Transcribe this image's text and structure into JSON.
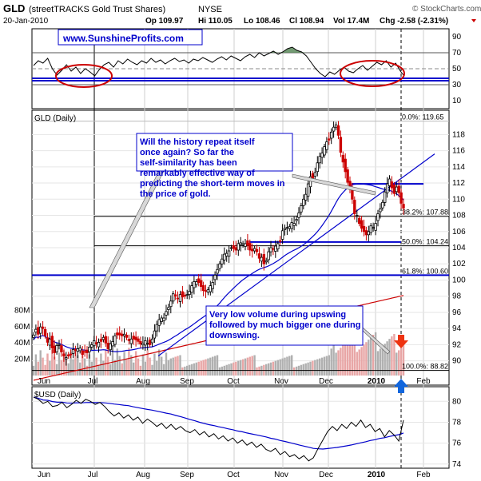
{
  "header": {
    "symbol": "GLD",
    "name": "(streetTRACKS Gold Trust Shares)",
    "exchange": "NYSE",
    "date": "20-Jan-2010",
    "open": "Op 109.97",
    "high": "Hi 110.05",
    "low": "Lo 108.46",
    "close": "Cl 108.94",
    "volume": "Vol 17.4M",
    "change": "Chg -2.58 (-2.31%)",
    "source": "© StockCharts.com"
  },
  "watermark": "www.SunshineProfits.com",
  "colors": {
    "up": "#000000",
    "down": "#cc0000",
    "ma": "#0000cc",
    "ma_long": "#cc0000",
    "fib": "#000000",
    "annotation": "#0000cc",
    "ellipse": "#cc0000",
    "overbought_fill": "#5a8a5a"
  },
  "chart_data": [
    {
      "id": "rsi",
      "type": "line",
      "title": "",
      "ylim": [
        0,
        100
      ],
      "yticks": [
        10,
        30,
        50,
        70,
        90
      ],
      "levels": [
        30,
        70
      ],
      "highlight_levels": [
        38,
        35
      ],
      "series": [
        {
          "x": [
            0,
            3,
            6,
            9,
            12,
            15,
            18,
            21,
            24,
            27,
            30,
            33,
            36,
            39,
            42,
            45,
            48,
            51,
            54,
            57,
            60,
            63,
            66,
            69,
            72,
            75,
            78,
            81,
            84,
            87,
            90,
            93,
            96,
            99,
            102,
            105,
            108,
            111,
            114,
            117,
            120,
            123,
            126,
            129,
            132,
            135,
            138,
            141,
            144,
            147,
            150,
            153,
            156,
            159,
            162,
            165,
            168,
            171,
            174,
            177,
            180,
            183,
            186,
            189,
            192,
            195,
            198,
            201,
            204,
            207,
            210,
            213,
            216,
            219,
            222,
            225,
            228,
            231,
            234,
            236
          ],
          "values": [
            54,
            60,
            57,
            63,
            50,
            42,
            48,
            55,
            47,
            52,
            44,
            50,
            46,
            41,
            49,
            55,
            58,
            52,
            60,
            56,
            62,
            58,
            55,
            60,
            57,
            63,
            58,
            61,
            56,
            60,
            63,
            59,
            61,
            57,
            62,
            60,
            64,
            61,
            58,
            62,
            65,
            61,
            66,
            63,
            60,
            65,
            68,
            64,
            70,
            66,
            69,
            72,
            68,
            71,
            75,
            77,
            73,
            71,
            66,
            58,
            50,
            44,
            40,
            46,
            43,
            48,
            52,
            47,
            45,
            50,
            54,
            48,
            53,
            58,
            55,
            60,
            52,
            57,
            47,
            42
          ]
        }
      ]
    },
    {
      "id": "price",
      "type": "candlestick",
      "title": "GLD (Daily)",
      "ylim": [
        87,
        121
      ],
      "yticks": [
        90,
        92,
        94,
        96,
        98,
        100,
        102,
        104,
        106,
        108,
        110,
        112,
        114,
        116,
        118
      ],
      "xticks": [
        "Jun",
        "Jul",
        "Aug",
        "Sep",
        "Oct",
        "Nov",
        "Dec",
        "2010",
        "Feb"
      ],
      "fib_levels": [
        {
          "label": "0.0%: 119.65",
          "value": 119.65
        },
        {
          "label": "38.2%: 107.88",
          "value": 107.88
        },
        {
          "label": "50.0%: 104.24",
          "value": 104.24
        },
        {
          "label": "61.8%: 100.60",
          "value": 100.6
        },
        {
          "label": "100.0%: 88.82",
          "value": 88.82
        }
      ],
      "volume_ticks": [
        "20M",
        "40M",
        "60M",
        "80M"
      ],
      "volume_ylim": [
        0,
        100
      ],
      "annotation_top": "Will the history repeat itself once again? So far the self-similarity has been remarkably effective way of predicting the short-term moves in the price of gold.",
      "annotation_volume": "Very low volume during upswing followed by much bigger one during downswing.",
      "close": [
        93.2,
        93.9,
        93.3,
        94.2,
        94.0,
        93.1,
        92.3,
        92.7,
        91.6,
        91.0,
        91.9,
        92.0,
        91.1,
        90.6,
        90.4,
        90.6,
        90.8,
        91.4,
        91.3,
        91.5,
        91.6,
        90.8,
        91.1,
        91.0,
        91.7,
        92.0,
        92.5,
        92.1,
        92.3,
        92.4,
        92.9,
        92.2,
        91.5,
        92.1,
        92.4,
        93.1,
        93.2,
        93.2,
        93.1,
        93.3,
        92.9,
        92.5,
        92.7,
        92.7,
        92.6,
        92.4,
        92.1,
        92.2,
        92.5,
        92.2,
        92.0,
        92.7,
        93.7,
        94.5,
        95.1,
        95.3,
        95.3,
        96.1,
        96.6,
        97.4,
        98.3,
        98.0,
        97.7,
        98.2,
        97.9,
        98.0,
        98.2,
        98.6,
        99.3,
        99.8,
        99.8,
        99.7,
        99.2,
        98.7,
        98.6,
        98.8,
        99.3,
        99.7,
        100.6,
        101.3,
        102.0,
        102.6,
        103.2,
        103.3,
        103.6,
        104.0,
        103.9,
        103.7,
        104.5,
        104.6,
        104.5,
        104.5,
        104.3,
        103.7,
        103.6,
        103.9,
        103.5,
        102.7,
        102.8,
        102.0,
        102.4,
        103.5,
        104.0,
        103.8,
        104.2,
        104.5,
        104.8,
        106.1,
        106.4,
        106.5,
        106.6,
        107.1,
        107.0,
        107.5,
        108.3,
        109.2,
        110.0,
        110.6,
        111.9,
        112.8,
        112.6,
        113.3,
        114.5,
        115.3,
        115.7,
        116.5,
        117.1,
        117.3,
        118.3,
        118.9,
        119.2,
        117.9,
        115.8,
        114.6,
        113.4,
        112.1,
        111.2,
        110.0,
        108.2,
        108.0,
        107.0,
        106.4,
        106.0,
        105.6,
        106.0,
        106.7,
        106.5,
        107.0,
        108.2,
        108.8,
        109.6,
        110.9,
        111.9,
        112.5,
        111.4,
        110.7,
        111.5,
        110.8,
        109.5,
        108.9
      ]
    },
    {
      "id": "usd",
      "type": "line",
      "title": "$USD (Daily)",
      "ylim": [
        73.6,
        81.4
      ],
      "yticks": [
        74,
        76,
        78,
        80
      ],
      "series": [
        {
          "values": [
            80.4,
            80.2,
            79.8,
            80.0,
            79.5,
            79.6,
            79.9,
            79.4,
            79.7,
            80.1,
            79.8,
            80.2,
            80.0,
            79.7,
            79.9,
            79.5,
            79.0,
            78.6,
            78.9,
            78.4,
            78.7,
            78.2,
            78.5,
            77.9,
            78.3,
            78.0,
            77.6,
            77.9,
            77.4,
            77.8,
            77.3,
            77.6,
            77.2,
            77.0,
            77.3,
            76.8,
            77.1,
            76.6,
            76.9,
            76.4,
            76.7,
            76.2,
            76.5,
            76.0,
            76.3,
            75.8,
            76.1,
            75.6,
            75.9,
            75.4,
            75.2,
            75.5,
            74.9,
            75.2,
            74.7,
            74.9,
            74.5,
            74.8,
            74.3,
            74.6,
            75.5,
            76.3,
            77.1,
            77.6,
            77.2,
            77.8,
            77.4,
            78.0,
            77.6,
            78.2,
            77.5,
            77.8,
            77.1,
            77.4,
            76.6,
            77.2,
            76.8,
            76.2,
            78.2
          ]
        }
      ]
    }
  ]
}
